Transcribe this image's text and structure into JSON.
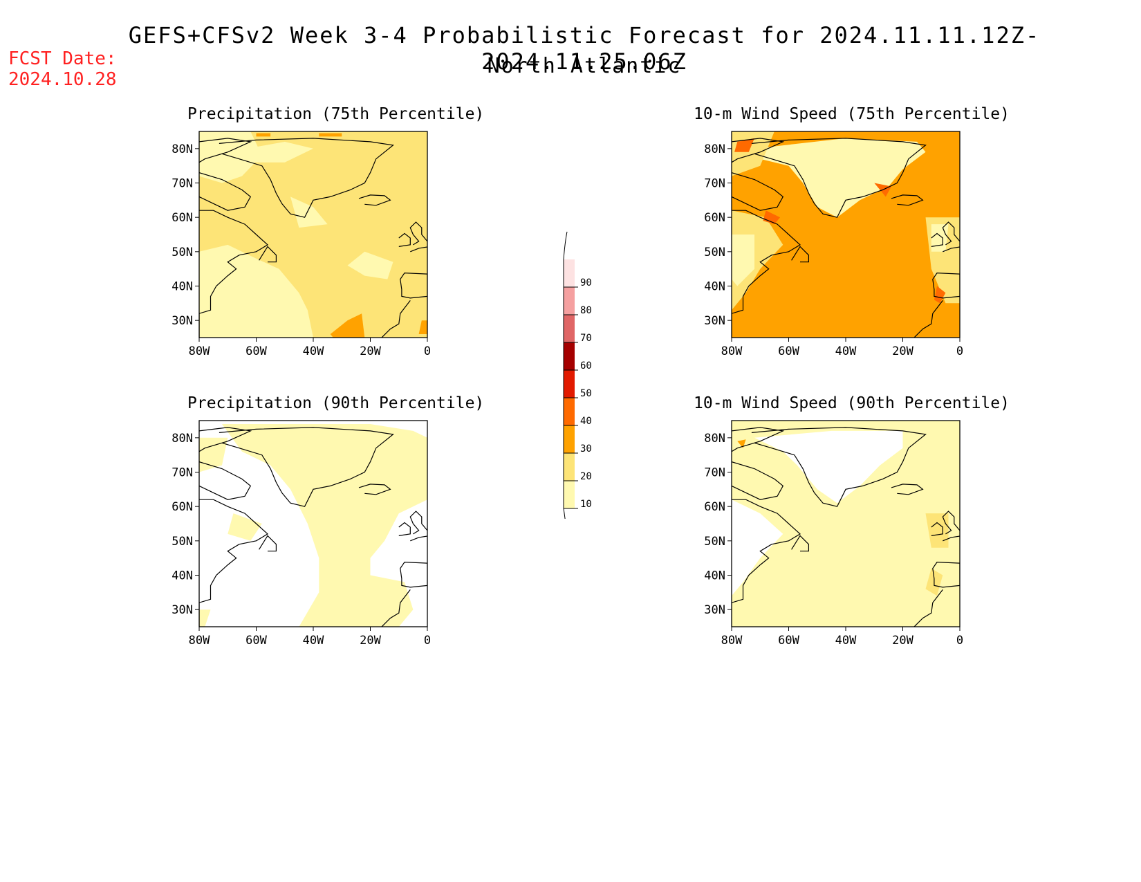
{
  "header": {
    "title": "GEFS+CFSv2 Week 3-4 Probabilistic Forecast for 2024.11.11.12Z-2024.11.25.06Z",
    "subtitle": "North Atlantic",
    "fcst_label": "FCST Date:",
    "fcst_date": "2024.10.28"
  },
  "panels": [
    {
      "id": "precip75",
      "title": "Precipitation (75th Percentile)",
      "dominant_bin": "20-30"
    },
    {
      "id": "wind75",
      "title": "10-m Wind Speed (75th Percentile)",
      "dominant_bin": "30-40"
    },
    {
      "id": "precip90",
      "title": "Precipitation (90th Percentile)",
      "dominant_bin": "<10 / 10-20"
    },
    {
      "id": "wind90",
      "title": "10-m Wind Speed (90th Percentile)",
      "dominant_bin": "10-20"
    }
  ],
  "axes": {
    "lat_labels": [
      "80N",
      "70N",
      "60N",
      "50N",
      "40N",
      "30N"
    ],
    "lon_labels": [
      "80W",
      "60W",
      "40W",
      "20W",
      "0"
    ]
  },
  "colorbar": {
    "levels": [
      "10",
      "20",
      "30",
      "40",
      "50",
      "60",
      "70",
      "80",
      "90"
    ],
    "colors": [
      "#fff9b0",
      "#fde477",
      "#ffa200",
      "#ff6a00",
      "#e21a00",
      "#a50000",
      "#e06666",
      "#f5a0a0",
      "#fde2e2"
    ],
    "below_color": "#ffffff"
  }
}
